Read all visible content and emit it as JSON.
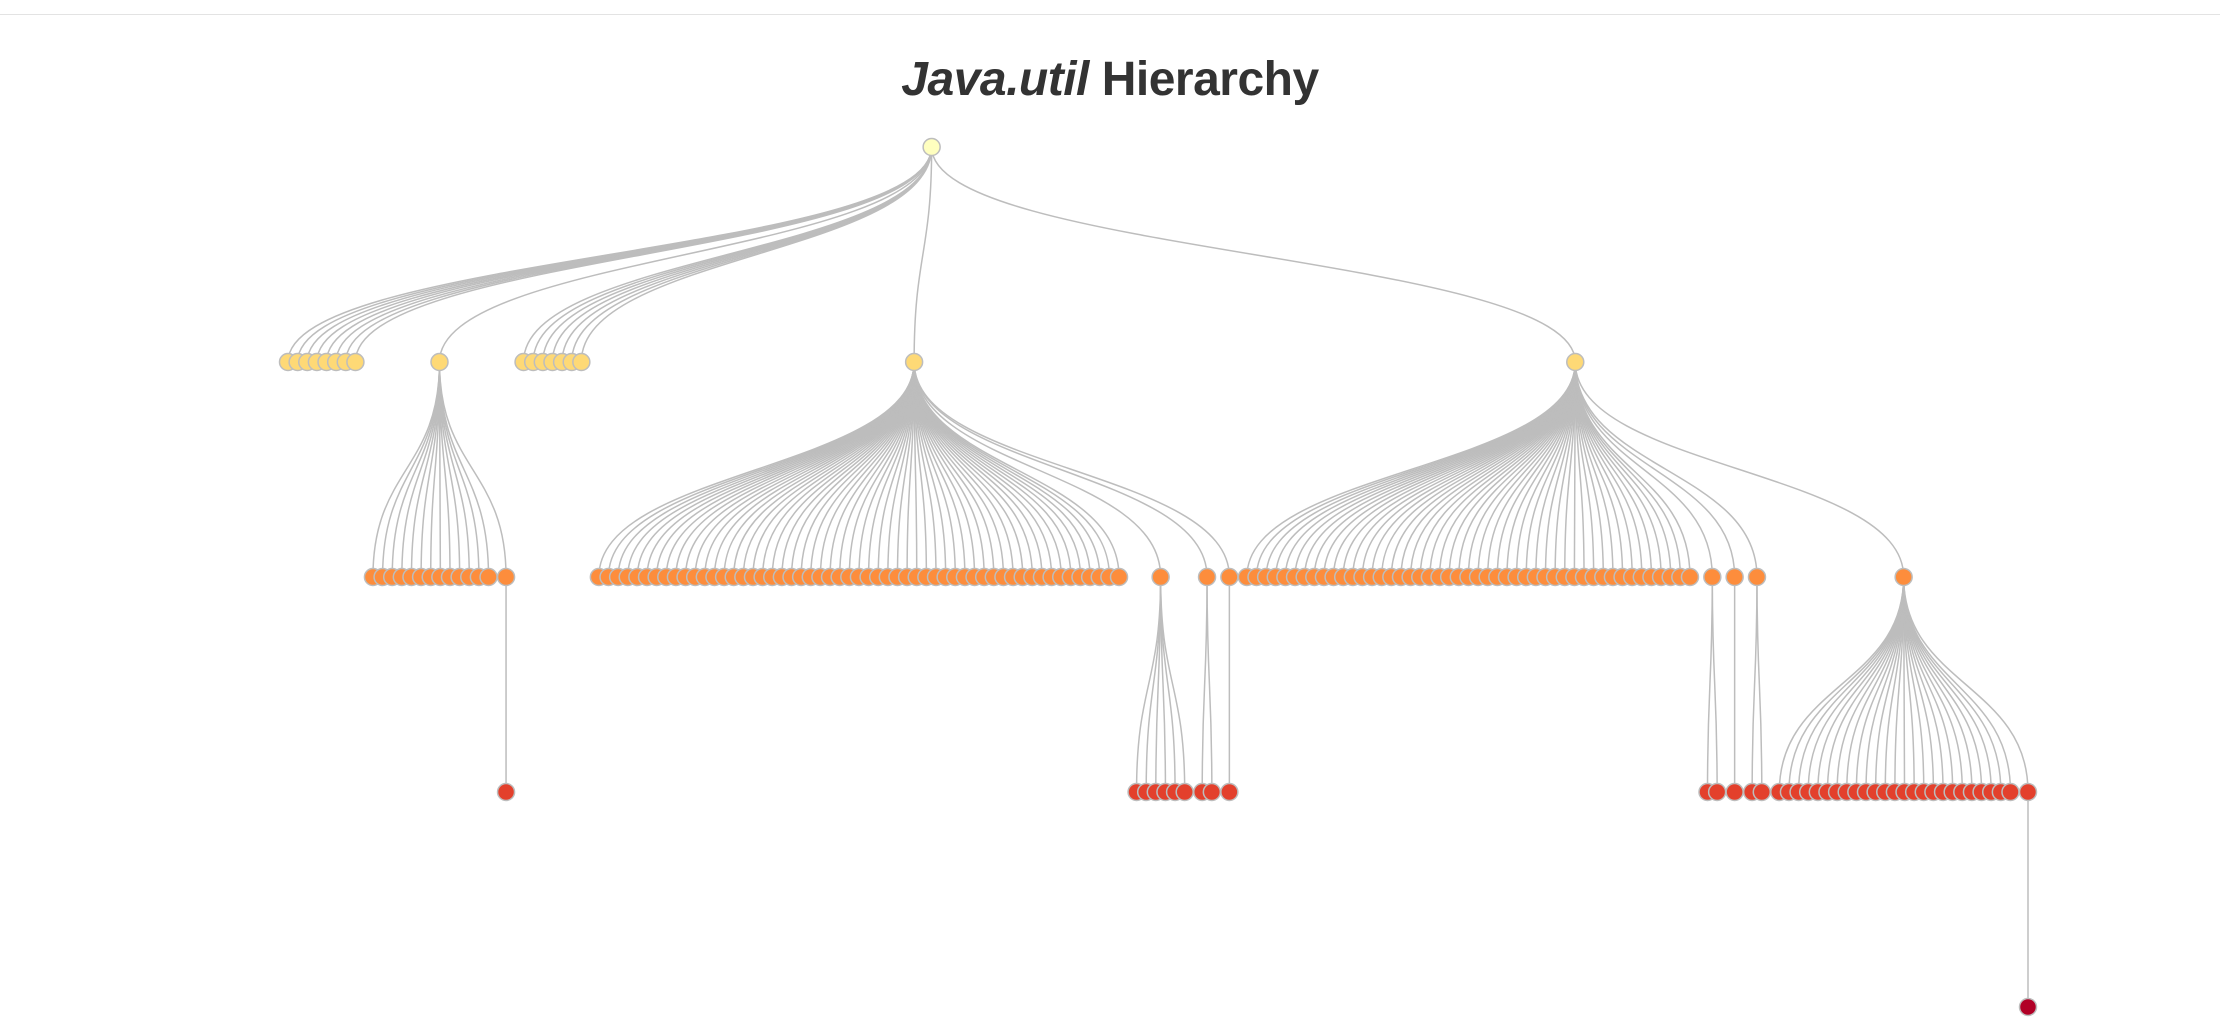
{
  "title": {
    "package": "Java.util",
    "word": "Hierarchy"
  },
  "colors": {
    "link": "#bdbdbd",
    "node_stroke": "#bdbdbd",
    "depth": [
      "#ffffbf",
      "#fed976",
      "#fd8d3c",
      "#e3402c",
      "#b10026"
    ]
  },
  "tree": {
    "c": [
      {
        "n": 16,
        "mid": 1,
        "c": [
          {
            "n": 14,
            "last": 1,
            "c": [
              {
                "n": 1
              }
            ]
          }
        ]
      },
      {
        "n": 1,
        "c": [
          {
            "n": 56,
            "last": 1,
            "c": [
              {
                "n": 6
              }
            ]
          },
          {
            "n": 1,
            "c": [
              {
                "n": 2
              }
            ]
          },
          {
            "n": 1,
            "c": [
              {
                "n": 1
              }
            ]
          }
        ]
      },
      {
        "n": 1,
        "c": [
          {
            "n": 48,
            "last": 1,
            "c": [
              {
                "n": 2
              }
            ]
          },
          {
            "n": 1,
            "c": [
              {
                "n": 1
              }
            ]
          },
          {
            "n": 1,
            "c": [
              {
                "n": 2
              }
            ]
          },
          {
            "n": 1,
            "c": [
              {
                "n": 26,
                "last": 1,
                "c": [
                  {
                    "n": 1
                  }
                ]
              }
            ]
          }
        ]
      }
    ]
  }
}
